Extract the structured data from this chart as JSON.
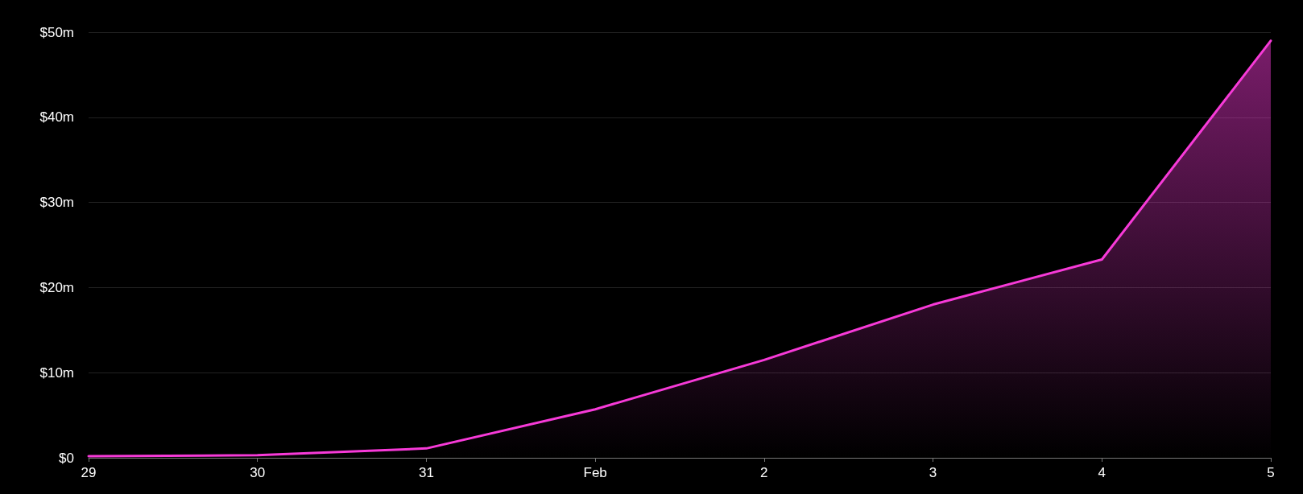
{
  "chart_data": {
    "type": "area",
    "categories": [
      "29",
      "30",
      "31",
      "Feb",
      "2",
      "3",
      "4",
      "5"
    ],
    "series": [
      {
        "color": "#f73ad8",
        "values": [
          0.2,
          0.3,
          1.1,
          5.7,
          11.5,
          18.0,
          23.3,
          49.0
        ]
      }
    ],
    "ylim": [
      0,
      50
    ],
    "yticks": [
      {
        "value": 0,
        "label": "$0"
      },
      {
        "value": 10,
        "label": "$10m"
      },
      {
        "value": 20,
        "label": "$20m"
      },
      {
        "value": 30,
        "label": "$30m"
      },
      {
        "value": 40,
        "label": "$40m"
      },
      {
        "value": 50,
        "label": "$50m"
      }
    ],
    "grid": "y",
    "marker": "none",
    "line_style": "solid"
  }
}
